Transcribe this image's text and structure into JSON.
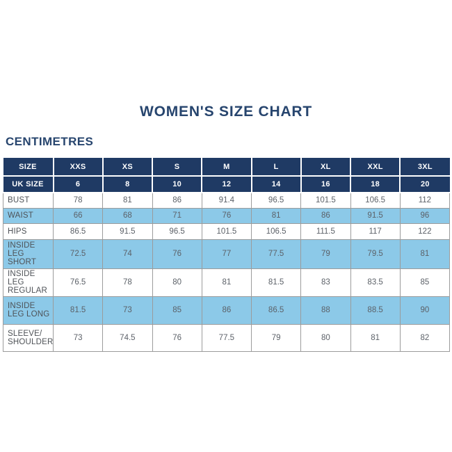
{
  "page": {
    "title": "WOMEN'S SIZE CHART",
    "unit_label": "CENTIMETRES"
  },
  "colors": {
    "navy": "#1f3a64",
    "title_navy": "#27456e",
    "light_blue": "#8cc9e8",
    "border_gray": "#9b9b9b",
    "label_text": "#4e5257",
    "cell_text": "#5c6168"
  },
  "chart_data": {
    "type": "table",
    "title": "WOMEN'S SIZE CHART",
    "unit": "CENTIMETRES",
    "header_rows": [
      {
        "label": "SIZE",
        "values": [
          "XXS",
          "XS",
          "S",
          "M",
          "L",
          "XL",
          "XXL",
          "3XL"
        ]
      },
      {
        "label": "UK SIZE",
        "values": [
          "6",
          "8",
          "10",
          "12",
          "14",
          "16",
          "18",
          "20"
        ]
      }
    ],
    "rows": [
      {
        "label": "BUST",
        "values": [
          "78",
          "81",
          "86",
          "91.4",
          "96.5",
          "101.5",
          "106.5",
          "112"
        ]
      },
      {
        "label": "WAIST",
        "values": [
          "66",
          "68",
          "71",
          "76",
          "81",
          "86",
          "91.5",
          "96"
        ]
      },
      {
        "label": "HIPS",
        "values": [
          "86.5",
          "91.5",
          "96.5",
          "101.5",
          "106.5",
          "111.5",
          "117",
          "122"
        ]
      },
      {
        "label": "INSIDE LEG SHORT",
        "values": [
          "72.5",
          "74",
          "76",
          "77",
          "77.5",
          "79",
          "79.5",
          "81"
        ]
      },
      {
        "label": "INSIDE LEG REGULAR",
        "values": [
          "76.5",
          "78",
          "80",
          "81",
          "81.5",
          "83",
          "83.5",
          "85"
        ]
      },
      {
        "label": "INSIDE LEG LONG",
        "values": [
          "81.5",
          "73",
          "85",
          "86",
          "86.5",
          "88",
          "88.5",
          "90"
        ]
      },
      {
        "label": "SLEEVE/ SHOULDER",
        "values": [
          "73",
          "74.5",
          "76",
          "77.5",
          "79",
          "80",
          "81",
          "82"
        ]
      }
    ]
  }
}
